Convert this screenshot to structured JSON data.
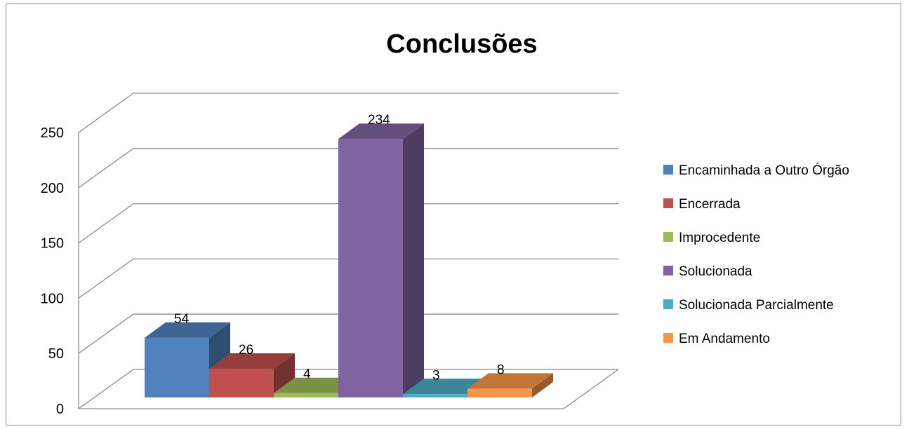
{
  "chart_data": {
    "type": "bar",
    "title": "Conclusões",
    "xlabel": "",
    "ylabel": "",
    "ylim": [
      0,
      250
    ],
    "y_ticks": [
      0,
      50,
      100,
      150,
      200,
      250
    ],
    "grid": true,
    "legend_position": "right",
    "three_d": true,
    "series": [
      {
        "name": "Encaminhada a Outro Órgão",
        "value": 54,
        "label": "54",
        "color": "#4f81bd"
      },
      {
        "name": "Encerrada",
        "value": 26,
        "label": "26",
        "color": "#c0504d"
      },
      {
        "name": "Improcedente",
        "value": 4,
        "label": "4",
        "color": "#9bbb59"
      },
      {
        "name": "Solucionada",
        "value": 234,
        "label": "234",
        "color": "#8064a2"
      },
      {
        "name": "Solucionada Parcialmente",
        "value": 3,
        "label": "3",
        "color": "#4bacc6"
      },
      {
        "name": "Em Andamento",
        "value": 8,
        "label": "8",
        "color": "#f79646"
      }
    ]
  }
}
